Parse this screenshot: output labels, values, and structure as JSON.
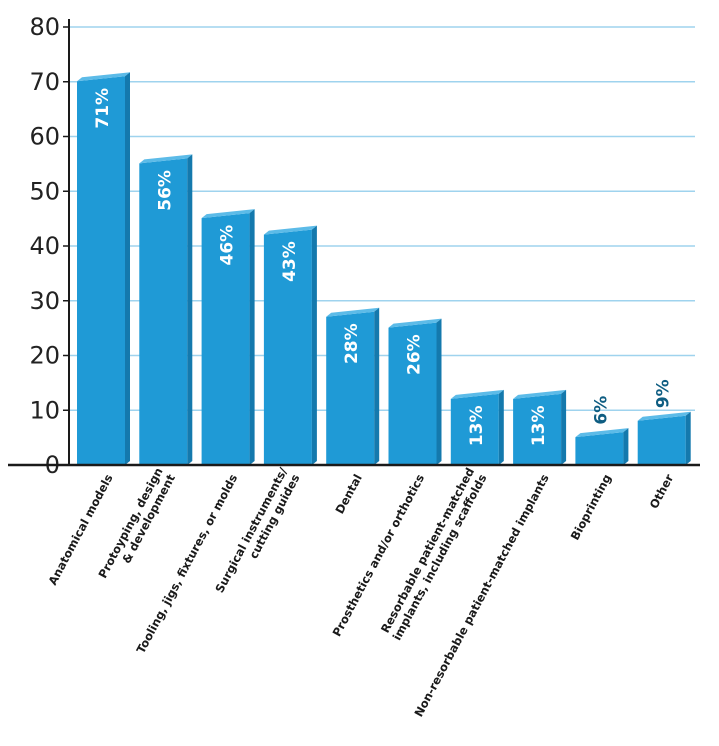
{
  "chart_data": {
    "type": "bar",
    "categories": [
      "Anatomical models",
      "Protoyping, design\n& development",
      "Tooling, jigs, fixtures, or molds",
      "Surgical instruments/\ncutting guides",
      "Dental",
      "Prosthetics and/or orthotics",
      "Resorbable patient-matched\nimplants, including scaffolds",
      "Non-resorbable patient-matched implants",
      "Bioprinting",
      "Other"
    ],
    "values": [
      71,
      56,
      46,
      43,
      28,
      26,
      13,
      13,
      6,
      9
    ],
    "data_labels": [
      "71%",
      "56%",
      "46%",
      "43%",
      "28%",
      "26%",
      "13%",
      "13%",
      "6%",
      "9%"
    ],
    "ylim": [
      0,
      80
    ],
    "yticks": [
      0,
      10,
      20,
      30,
      40,
      50,
      60,
      70,
      80
    ],
    "grid": true,
    "colors": {
      "bar": "#1f9ad6",
      "bar_top": "#5cbbe8",
      "bar_side": "#1479ad",
      "grid": "#9fd3ee",
      "axis": "#1a1a1a",
      "label_inside": "#ffffff",
      "label_outside": "#0e5d82"
    }
  }
}
